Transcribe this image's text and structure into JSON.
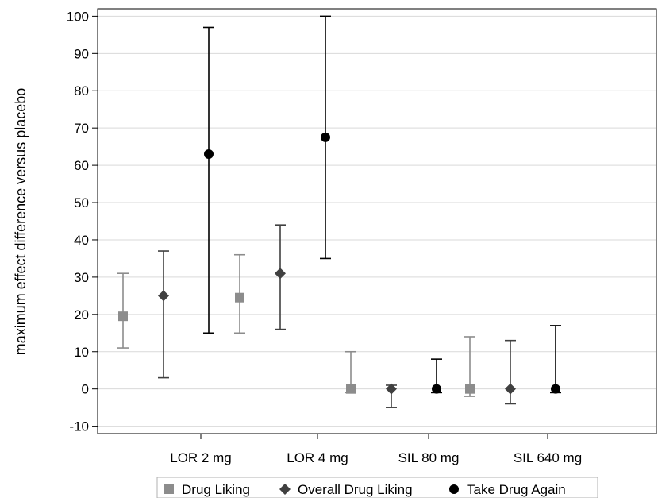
{
  "chart_data": {
    "type": "scatter",
    "title": "",
    "xlabel": "",
    "ylabel": "maximum effect difference versus placebo",
    "categories": [
      "LOR 2 mg",
      "LOR 4 mg",
      "SIL 80 mg",
      "SIL 640 mg"
    ],
    "ylim": [
      -12,
      102
    ],
    "yticks": [
      -10,
      0,
      10,
      20,
      30,
      40,
      50,
      60,
      70,
      80,
      90,
      100
    ],
    "grid": "horizontal",
    "legend_position": "bottom",
    "series": [
      {
        "name": "Drug Liking",
        "marker": "square",
        "color": "#8c8c8c",
        "values": [
          19.5,
          24.5,
          0,
          0
        ],
        "lower": [
          11,
          15,
          -1,
          -2
        ],
        "upper": [
          31,
          36,
          10,
          14
        ]
      },
      {
        "name": "Overall Drug Liking",
        "marker": "diamond",
        "color": "#404040",
        "values": [
          25,
          31,
          0,
          0
        ],
        "lower": [
          3,
          16,
          -5,
          -4
        ],
        "upper": [
          37,
          44,
          1,
          13
        ]
      },
      {
        "name": "Take Drug Again",
        "marker": "circle",
        "color": "#000000",
        "values": [
          63,
          67.5,
          0,
          0
        ],
        "lower": [
          15,
          35,
          -1,
          -1
        ],
        "upper": [
          97,
          100,
          8,
          17
        ]
      }
    ]
  }
}
